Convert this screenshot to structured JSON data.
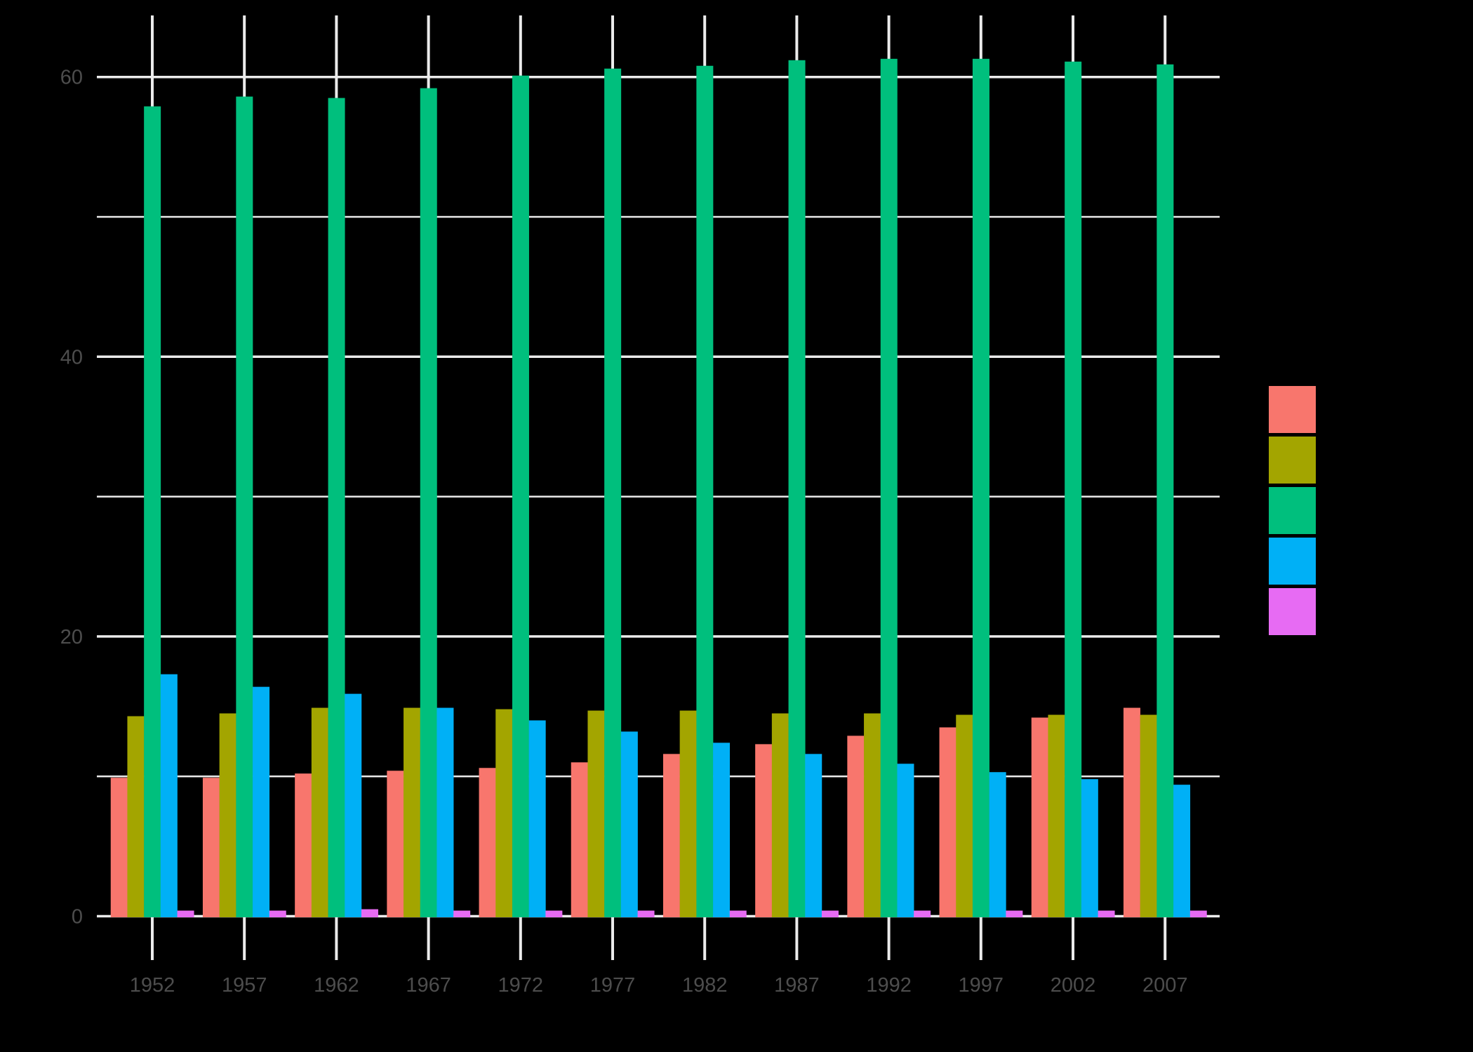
{
  "chart_data": {
    "type": "bar",
    "mode": "grouped",
    "title": "",
    "xlabel": "",
    "ylabel": "",
    "categories": [
      "1952",
      "1957",
      "1962",
      "1967",
      "1972",
      "1977",
      "1982",
      "1987",
      "1992",
      "1997",
      "2002",
      "2007"
    ],
    "series": [
      {
        "name": "",
        "color": "#F8766D",
        "values": [
          9.9,
          9.9,
          10.2,
          10.4,
          10.6,
          11.0,
          11.6,
          12.3,
          12.9,
          13.5,
          14.2,
          14.9
        ]
      },
      {
        "name": "",
        "color": "#A3A500",
        "values": [
          14.3,
          14.5,
          14.9,
          14.9,
          14.8,
          14.7,
          14.7,
          14.5,
          14.5,
          14.4,
          14.4,
          14.4
        ]
      },
      {
        "name": "",
        "color": "#00BF7D",
        "values": [
          57.9,
          58.6,
          58.5,
          59.2,
          60.1,
          60.6,
          60.8,
          61.2,
          61.3,
          61.3,
          61.1,
          60.9
        ]
      },
      {
        "name": "",
        "color": "#00B0F6",
        "values": [
          17.3,
          16.4,
          15.9,
          14.9,
          14.0,
          13.2,
          12.4,
          11.6,
          10.9,
          10.3,
          9.8,
          9.4
        ]
      },
      {
        "name": "",
        "color": "#E76BF3",
        "values": [
          0.4,
          0.4,
          0.5,
          0.4,
          0.4,
          0.4,
          0.4,
          0.4,
          0.4,
          0.4,
          0.4,
          0.4
        ]
      }
    ],
    "yticks": [
      0,
      20,
      40,
      60
    ],
    "ylim": [
      0,
      64
    ],
    "grid": true,
    "legend_position": "right",
    "background": "#000000",
    "gridline_color": "#EBEBEB",
    "tick_label_color": "#4D4D4D"
  }
}
